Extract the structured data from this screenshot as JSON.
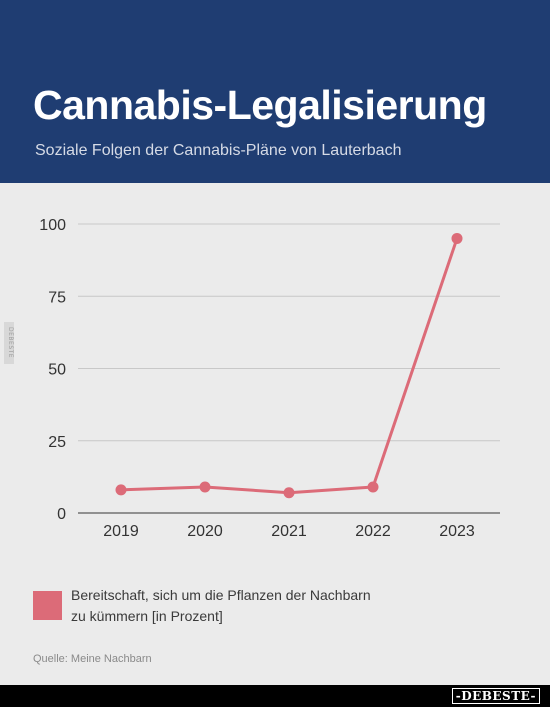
{
  "header": {
    "title": "Cannabis-Legalisierung",
    "subtitle": "Soziale Folgen der Cannabis-Pläne von Lauterbach"
  },
  "chart_data": {
    "type": "line",
    "title": "Cannabis-Legalisierung",
    "subtitle": "Soziale Folgen der Cannabis-Pläne von Lauterbach",
    "x": [
      "2019",
      "2020",
      "2021",
      "2022",
      "2023"
    ],
    "y_ticks": [
      "0",
      "25",
      "50",
      "75",
      "100"
    ],
    "ylim": [
      0,
      100
    ],
    "grid": true,
    "legend_position": "bottom-left",
    "series": [
      {
        "name": "Bereitschaft, sich um die Pflanzen der Nachbarn zu kümmern [in Prozent]",
        "values": [
          8,
          9,
          7,
          9,
          95
        ],
        "color": "#dc6b78"
      }
    ]
  },
  "legend": {
    "label": "Bereitschaft, sich um die Pflanzen der Nachbarn zu kümmern [in Prozent]",
    "color": "#dc6b78"
  },
  "source": "Quelle: Meine Nachbarn",
  "watermark": {
    "side": "DEBESTE",
    "footer": "-DEBESTE-"
  }
}
